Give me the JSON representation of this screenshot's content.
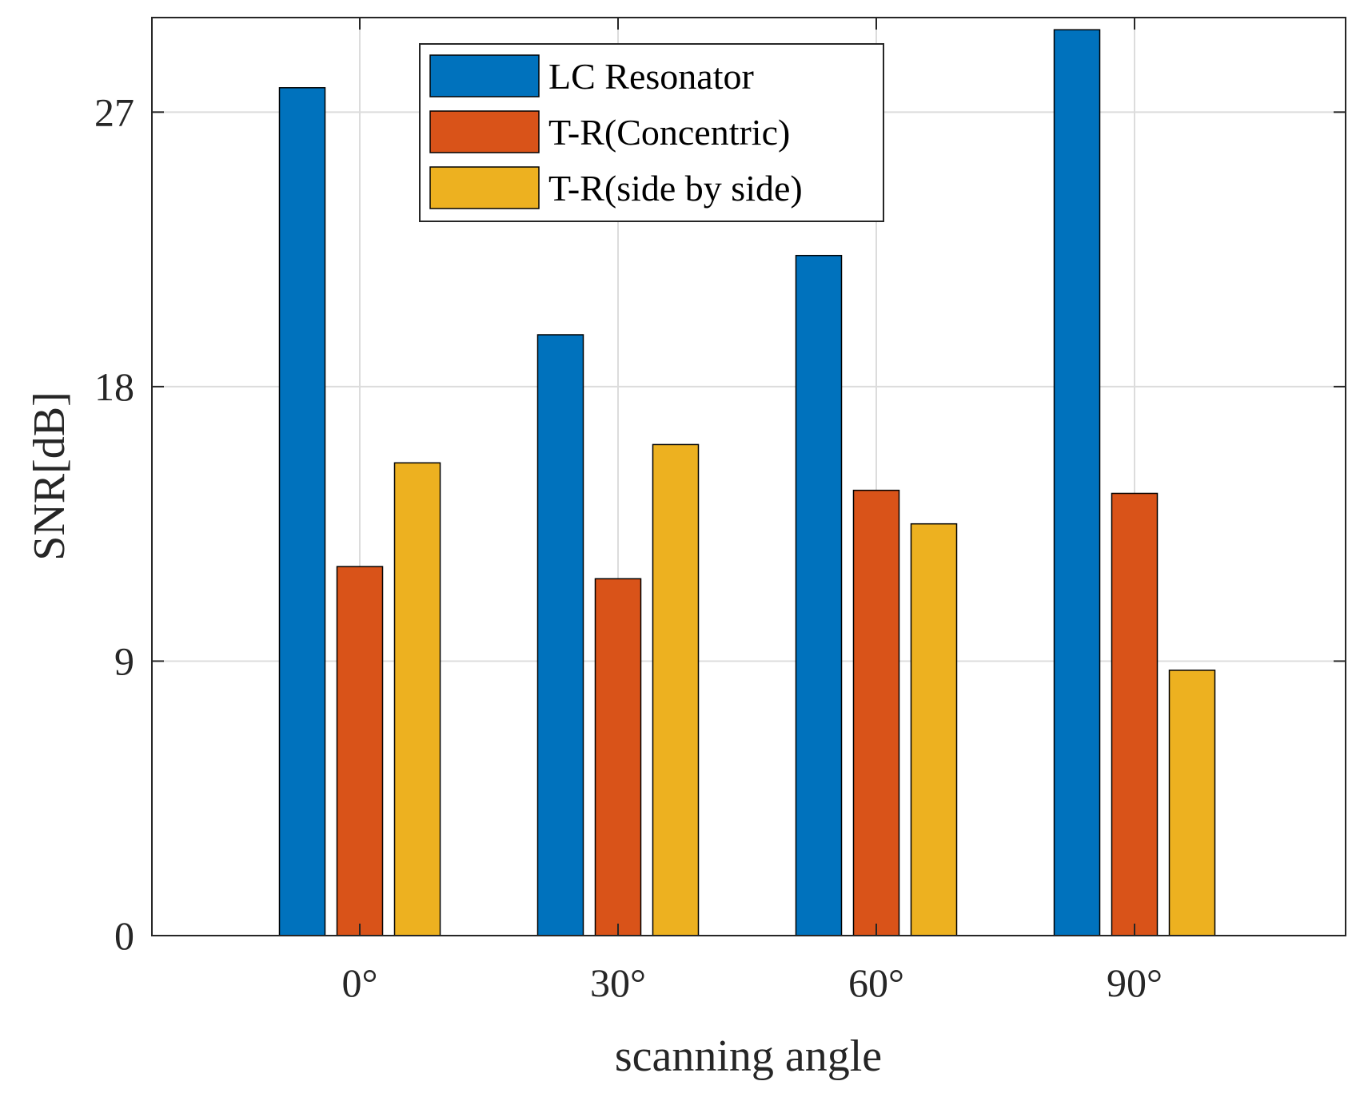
{
  "chart_data": {
    "type": "bar",
    "title": "",
    "xlabel": "scanning angle",
    "ylabel": "SNR[dB]",
    "categories": [
      "0°",
      "30°",
      "60°",
      "90°"
    ],
    "yticks": [
      0,
      9,
      18,
      27
    ],
    "ylim": [
      0,
      30.1
    ],
    "grid": true,
    "legend_position": "top-center",
    "series": [
      {
        "name": "LC Resonator",
        "color": "#0072BD",
        "values": [
          27.8,
          19.7,
          22.3,
          29.7
        ]
      },
      {
        "name": "T-R(Concentric)",
        "color": "#D95319",
        "values": [
          12.1,
          11.7,
          14.6,
          14.5
        ]
      },
      {
        "name": "T-R(side by side)",
        "color": "#EDB120",
        "values": [
          15.5,
          16.1,
          13.5,
          8.7
        ]
      }
    ]
  }
}
